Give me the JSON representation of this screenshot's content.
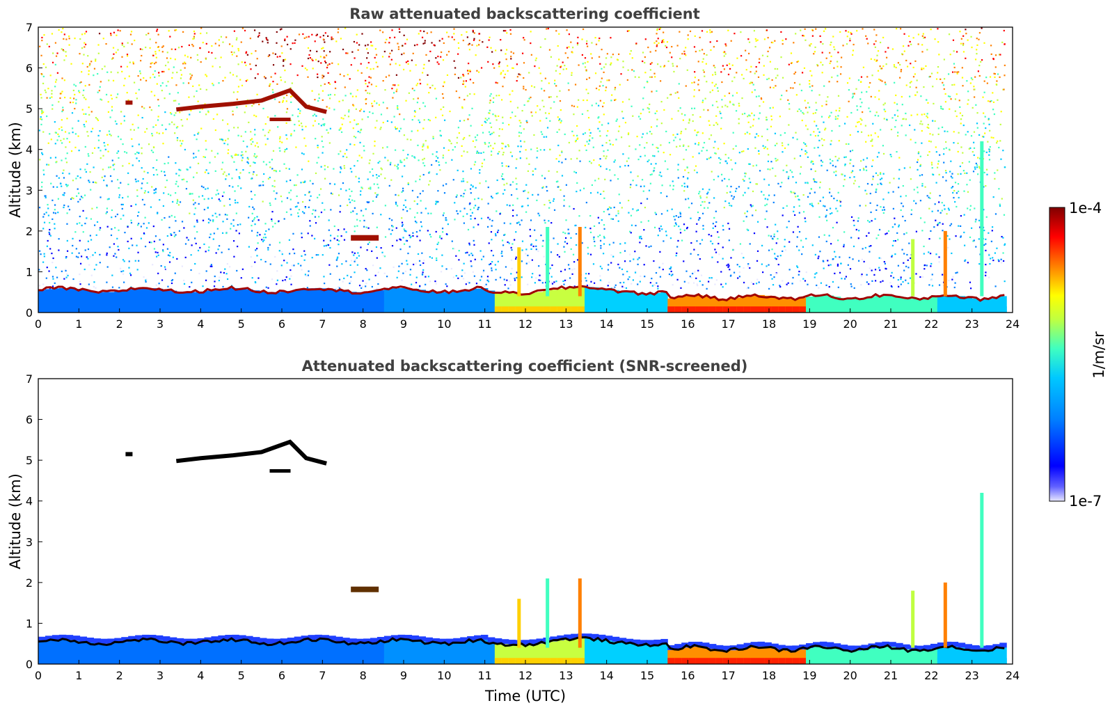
{
  "chart_data": [
    {
      "type": "heatmap",
      "title": "Raw attenuated backscattering coefficient",
      "xlabel": "",
      "ylabel": "Altitude (km)",
      "xlim": [
        0,
        24
      ],
      "ylim": [
        0,
        7
      ],
      "x_ticks": [
        "0",
        "1",
        "2",
        "3",
        "4",
        "5",
        "6",
        "7",
        "8",
        "9",
        "10",
        "11",
        "12",
        "13",
        "14",
        "15",
        "16",
        "17",
        "18",
        "19",
        "20",
        "21",
        "22",
        "23",
        "24"
      ],
      "y_ticks": [
        "0",
        "1",
        "2",
        "3",
        "4",
        "5",
        "6",
        "7"
      ],
      "screened": false
    },
    {
      "type": "heatmap",
      "title": "Attenuated backscattering coefficient (SNR-screened)",
      "xlabel": "Time (UTC)",
      "ylabel": "Altitude (km)",
      "xlim": [
        0,
        24
      ],
      "ylim": [
        0,
        7
      ],
      "x_ticks": [
        "0",
        "1",
        "2",
        "3",
        "4",
        "5",
        "6",
        "7",
        "8",
        "9",
        "10",
        "11",
        "12",
        "13",
        "14",
        "15",
        "16",
        "17",
        "18",
        "19",
        "20",
        "21",
        "22",
        "23",
        "24"
      ],
      "y_ticks": [
        "0",
        "1",
        "2",
        "3",
        "4",
        "5",
        "6",
        "7"
      ],
      "screened": true
    }
  ],
  "colorbar": {
    "label": "1/m/sr",
    "max_label": "1e-4",
    "min_label": "1e-7",
    "scale": "log",
    "colormap": [
      "#e8e8ff",
      "#0000ff",
      "#0080ff",
      "#00c8ff",
      "#40ffc0",
      "#c0ff40",
      "#ffff00",
      "#ff8000",
      "#ff0000",
      "#800000"
    ]
  }
}
